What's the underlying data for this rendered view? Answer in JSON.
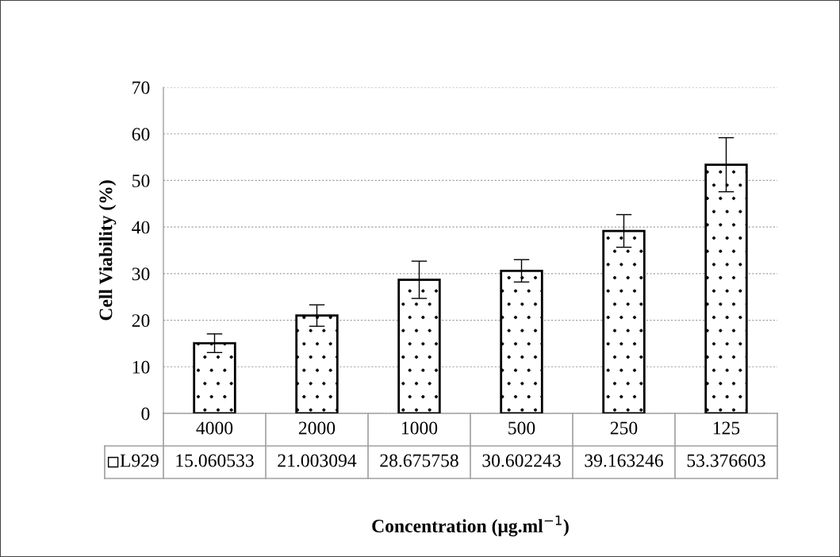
{
  "chart_data": {
    "type": "bar",
    "xlabel": "Concentration (μg.ml$^{−1}$)",
    "ylabel": "Cell Viability (%)",
    "categories": [
      "4000",
      "2000",
      "1000",
      "500",
      "250",
      "125"
    ],
    "series": [
      {
        "name": "L929",
        "color": "#000000",
        "values": [
          15.060533,
          21.003094,
          28.675758,
          30.602243,
          39.163246,
          53.376603
        ],
        "errors": [
          2.0,
          2.3,
          4.0,
          2.4,
          3.5,
          5.8
        ]
      }
    ],
    "ylim": [
      0,
      70
    ],
    "yticks": [
      0,
      10,
      20,
      30,
      40,
      50,
      60,
      70
    ],
    "grid": "y",
    "data_labels": true
  }
}
